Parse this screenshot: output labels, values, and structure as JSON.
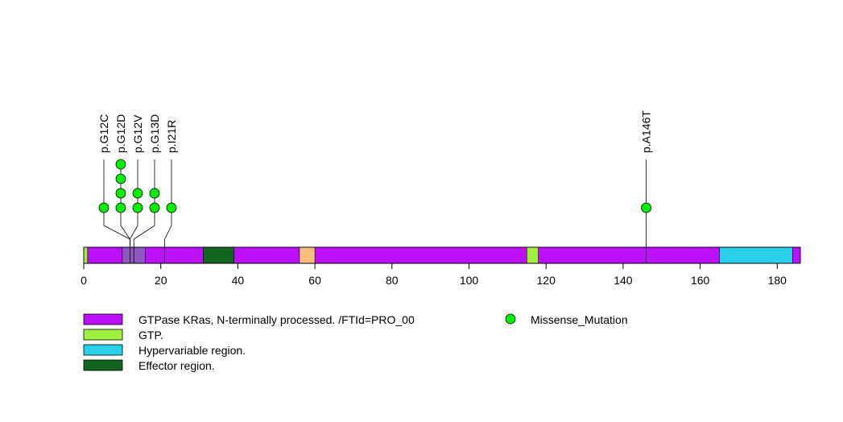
{
  "chart_data": {
    "type": "lollipop",
    "xlim": [
      0,
      186
    ],
    "protein_length": 186,
    "x_ticks": [
      0,
      20,
      40,
      60,
      80,
      100,
      120,
      140,
      160,
      180
    ],
    "regions": [
      {
        "name": "GTPase KRas, N-terminally processed. /FTId=PRO_00",
        "start": 1,
        "end": 186,
        "color": "#BC10F8"
      },
      {
        "name": "GTP.",
        "start": 0,
        "end": 1,
        "color": "#A0F040"
      },
      {
        "name": "GTP.",
        "start": 10,
        "end": 16,
        "color": "#8E56C0"
      },
      {
        "name": "Effector region.",
        "start": 31,
        "end": 39,
        "color": "#12641E"
      },
      {
        "name": "",
        "start": 56,
        "end": 60,
        "color": "#F6BF7B"
      },
      {
        "name": "GTP.",
        "start": 115,
        "end": 118,
        "color": "#A0F040"
      },
      {
        "name": "Hypervariable region.",
        "start": 165,
        "end": 184,
        "color": "#2AD0E8"
      }
    ],
    "mutations": [
      {
        "label": "p.G12C",
        "position": 12,
        "count": 1
      },
      {
        "label": "p.G12D",
        "position": 12,
        "count": 4
      },
      {
        "label": "p.G12V",
        "position": 12,
        "count": 2
      },
      {
        "label": "p.G13D",
        "position": 13,
        "count": 2
      },
      {
        "label": "p.I21R",
        "position": 21,
        "count": 1
      },
      {
        "label": "p.A146T",
        "position": 146,
        "count": 1
      }
    ],
    "legend": {
      "regions": [
        {
          "label": "GTPase KRas, N-terminally processed. /FTId=PRO_00",
          "color": "#BC10F8"
        },
        {
          "label": "GTP.",
          "color": "#A0F040"
        },
        {
          "label": "Hypervariable region.",
          "color": "#2AD0E8"
        },
        {
          "label": "Effector region.",
          "color": "#12641E"
        }
      ],
      "mutation_types": [
        {
          "label": "Missense_Mutation",
          "color": "#00EE00"
        }
      ]
    }
  }
}
